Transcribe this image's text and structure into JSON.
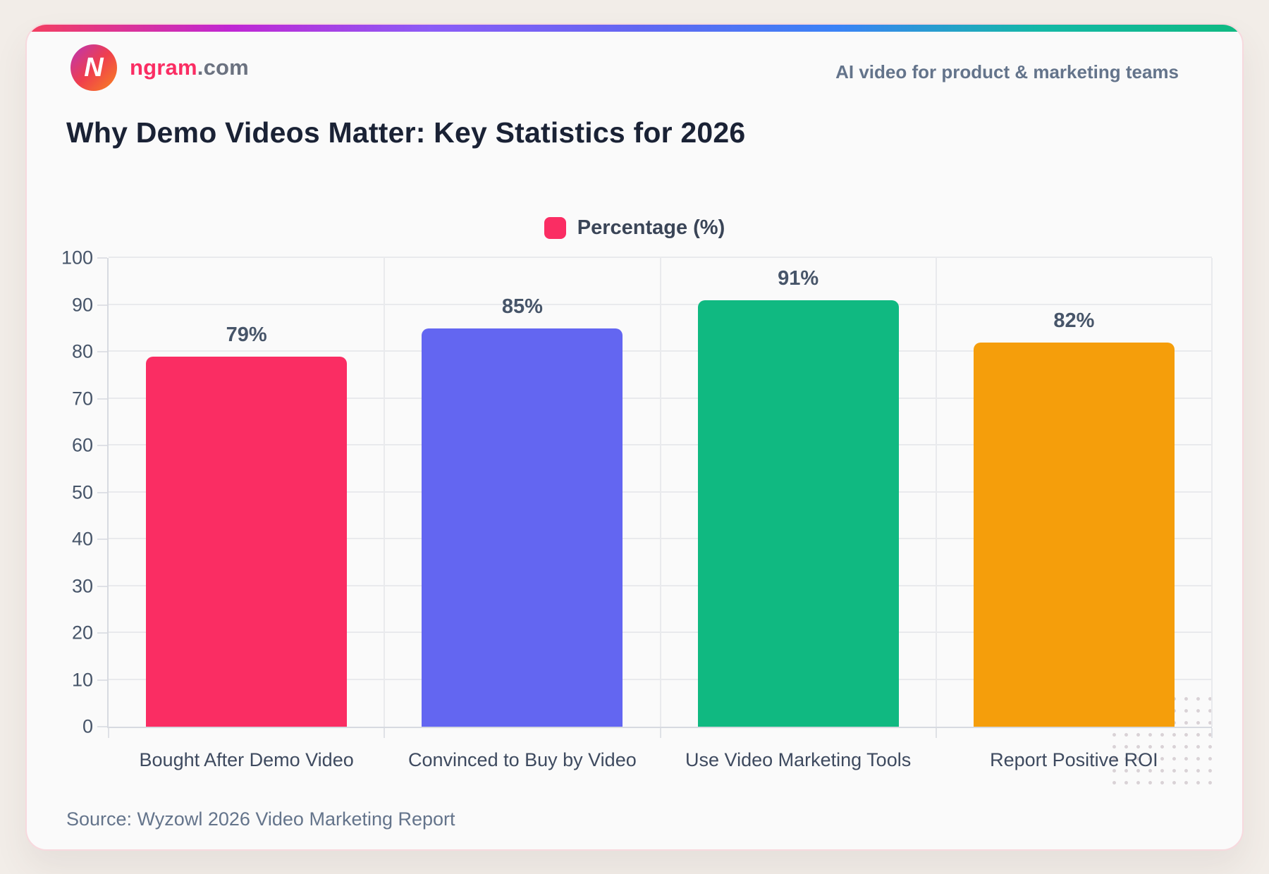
{
  "page": {
    "background": "#F2EDE8"
  },
  "card": {
    "background": "#FAFAFA",
    "border_color": "#F7D9DE",
    "top_gradient": [
      "#F43F5E",
      "#C026D3",
      "#8B5CF6",
      "#6366F1",
      "#3B82F6",
      "#14B8A6",
      "#10B981"
    ]
  },
  "header": {
    "logo_letter": "N",
    "logo_gradient": [
      "#B935B8",
      "#EF3E4E",
      "#F8841F"
    ],
    "logo_text_primary": "ngram",
    "logo_text_primary_color": "#FA2D63",
    "logo_text_secondary": ".com",
    "logo_text_secondary_color": "#6B7280",
    "tagline": "AI video for product & marketing teams"
  },
  "title": "Why Demo Videos Matter: Key Statistics for 2026",
  "legend": {
    "label": "Percentage (%)",
    "swatch_color": "#FA2D63"
  },
  "chart_data": {
    "type": "bar",
    "title": "Why Demo Videos Matter: Key Statistics for 2026",
    "categories": [
      "Bought After Demo Video",
      "Convinced to Buy by Video",
      "Use Video Marketing Tools",
      "Report Positive ROI"
    ],
    "values": [
      79,
      85,
      91,
      82
    ],
    "value_labels": [
      "79%",
      "85%",
      "91%",
      "82%"
    ],
    "bar_colors": [
      "#FA2D63",
      "#6366F1",
      "#10B981",
      "#F59E0B"
    ],
    "xlabel": "",
    "ylabel": "",
    "ylim": [
      0,
      100
    ],
    "yticks": [
      0,
      10,
      20,
      30,
      40,
      50,
      60,
      70,
      80,
      90,
      100
    ],
    "grid": true,
    "legend_entries": [
      "Percentage (%)"
    ],
    "legend_position": "top-center"
  },
  "footer": {
    "source": "Source: Wyzowl 2026 Video Marketing Report"
  }
}
